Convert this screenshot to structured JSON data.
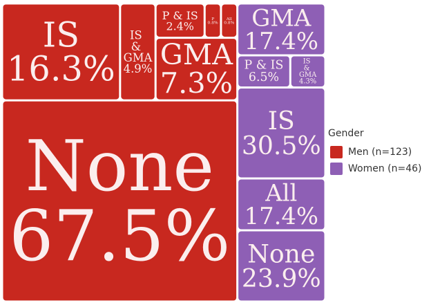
{
  "chart_data": {
    "type": "treemap",
    "legend_title": "Gender",
    "legend": "right",
    "series": [
      {
        "name": "Men (n=123)",
        "n": 123,
        "color": "#c8281f",
        "categories": [
          "IS",
          "IS & GMA",
          "P & IS",
          "P",
          "All",
          "GMA",
          "None"
        ],
        "values": [
          16.3,
          4.9,
          2.4,
          0.8,
          0.8,
          7.3,
          67.5
        ],
        "value_labels": [
          "16.3%",
          "4.9%",
          "2.4%",
          "0.8%",
          "0.8%",
          "7.3%",
          "67.5%"
        ]
      },
      {
        "name": "Women (n=46)",
        "n": 46,
        "color": "#8e5fb5",
        "categories": [
          "GMA",
          "P & IS",
          "IS & GMA",
          "IS",
          "All",
          "None"
        ],
        "values": [
          17.4,
          6.5,
          4.3,
          30.5,
          17.4,
          23.9
        ],
        "value_labels": [
          "17.4%",
          "6.5%",
          "4.3%",
          "30.5%",
          "17.4%",
          "23.9%"
        ]
      }
    ]
  }
}
